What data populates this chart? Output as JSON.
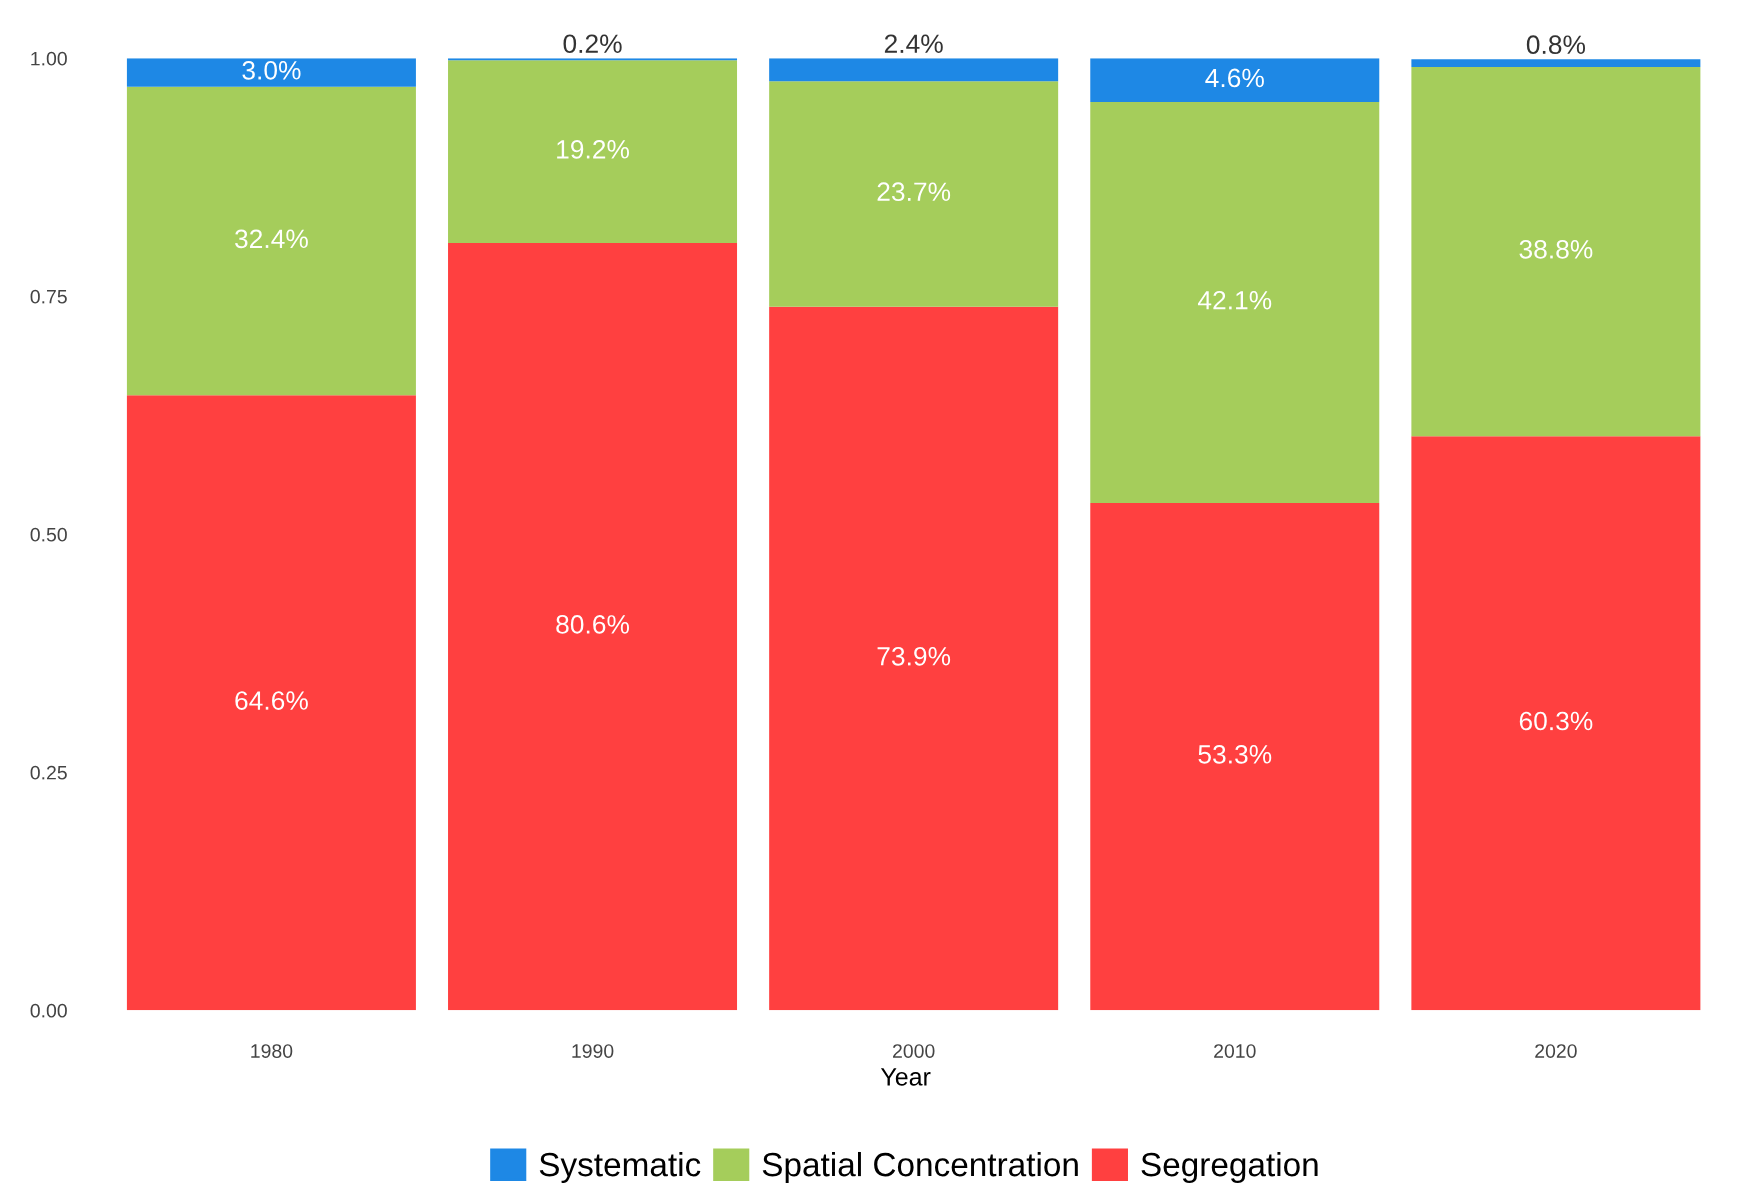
{
  "chart_data": {
    "type": "bar",
    "stacked": true,
    "xlabel": "Year",
    "categories": [
      "1980",
      "1990",
      "2000",
      "2010",
      "2020"
    ],
    "series": [
      {
        "name": "Segregation",
        "color": "#ff4040",
        "values": [
          0.646,
          0.806,
          0.739,
          0.533,
          0.603
        ],
        "value_labels": [
          "64.6%",
          "80.6%",
          "73.9%",
          "53.3%",
          "60.3%"
        ]
      },
      {
        "name": "Spatial Concentration",
        "color": "#a5cd5b",
        "values": [
          0.324,
          0.192,
          0.237,
          0.421,
          0.388
        ],
        "value_labels": [
          "32.4%",
          "19.2%",
          "23.7%",
          "42.1%",
          "38.8%"
        ]
      },
      {
        "name": "Systematic",
        "color": "#1e88e5",
        "values": [
          0.03,
          0.002,
          0.024,
          0.046,
          0.008
        ],
        "value_labels": [
          "3.0%",
          "0.2%",
          "2.4%",
          "4.6%",
          "0.8%"
        ]
      }
    ],
    "ylim": [
      0,
      1
    ],
    "yticks": [
      {
        "value": 0,
        "label": "0.00"
      },
      {
        "value": 0.25,
        "label": "0.25"
      },
      {
        "value": 0.5,
        "label": "0.50"
      },
      {
        "value": 0.75,
        "label": "0.75"
      },
      {
        "value": 1,
        "label": "1.00"
      }
    ],
    "grid": false,
    "legend": "bottom"
  }
}
